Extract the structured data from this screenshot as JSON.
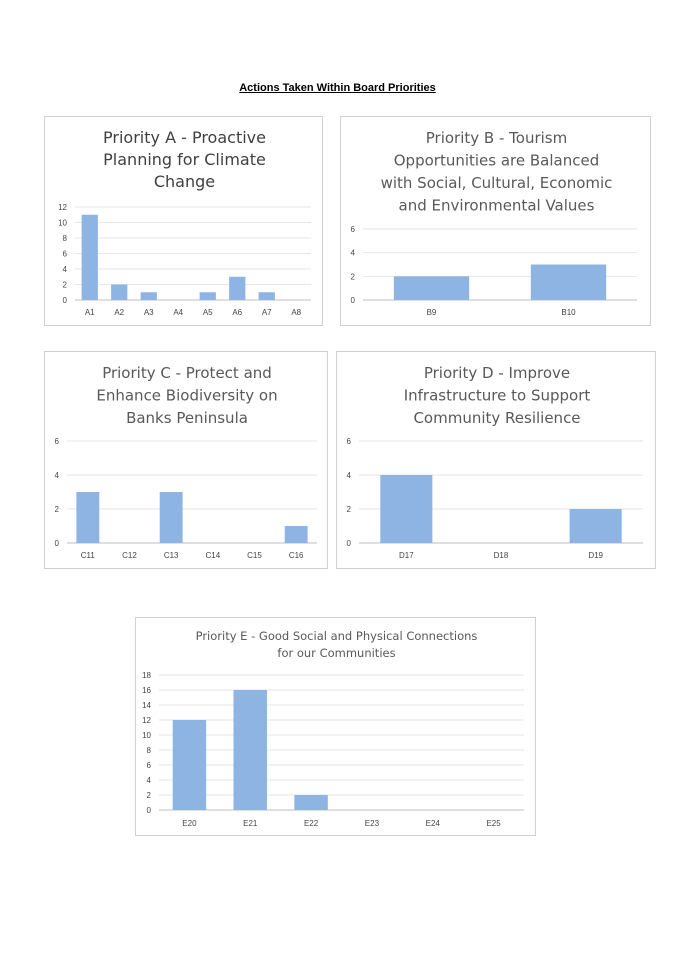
{
  "page": {
    "title": "Actions Taken Within Board Priorities"
  },
  "colors": {
    "bar": "#8db4e2",
    "grid": "#e6e6e6",
    "axis": "#bfbfbf",
    "title_dark": "#404040",
    "title_light": "#595959"
  },
  "chart_data": [
    {
      "id": "A",
      "type": "bar",
      "title_lines": [
        "Priority A - Proactive",
        "Planning for Climate",
        "Change"
      ],
      "categories": [
        "A1",
        "A2",
        "A3",
        "A4",
        "A5",
        "A6",
        "A7",
        "A8"
      ],
      "values": [
        11,
        2,
        1,
        0,
        1,
        3,
        1,
        0
      ],
      "ylim": [
        0,
        12
      ],
      "yticks": [
        "0",
        "2",
        "4",
        "6",
        "8",
        "10",
        "12"
      ],
      "grid": true
    },
    {
      "id": "B",
      "type": "bar",
      "title_lines": [
        "Priority B - Tourism",
        "Opportunities are Balanced",
        "with Social, Cultural, Economic",
        "and Environmental Values"
      ],
      "categories": [
        "B9",
        "B10"
      ],
      "values": [
        2,
        3
      ],
      "ylim": [
        0,
        6
      ],
      "yticks": [
        "0",
        "2",
        "4",
        "6"
      ],
      "grid": true
    },
    {
      "id": "C",
      "type": "bar",
      "title_lines": [
        "Priority C - Protect and",
        "Enhance Biodiversity on",
        "Banks Peninsula"
      ],
      "categories": [
        "C11",
        "C12",
        "C13",
        "C14",
        "C15",
        "C16"
      ],
      "values": [
        3,
        0,
        3,
        0,
        0,
        1
      ],
      "ylim": [
        0,
        6
      ],
      "yticks": [
        "0",
        "2",
        "4",
        "6"
      ],
      "grid": true
    },
    {
      "id": "D",
      "type": "bar",
      "title_lines": [
        "Priority D - Improve",
        "Infrastructure to Support",
        "Community Resilience"
      ],
      "categories": [
        "D17",
        "D18",
        "D19"
      ],
      "values": [
        4,
        0,
        2
      ],
      "ylim": [
        0,
        6
      ],
      "yticks": [
        "0",
        "2",
        "4",
        "6"
      ],
      "grid": true
    },
    {
      "id": "E",
      "type": "bar",
      "title_lines": [
        "Priority E - Good Social and Physical Connections",
        "for our Communities"
      ],
      "categories": [
        "E20",
        "E21",
        "E22",
        "E23",
        "E24",
        "E25"
      ],
      "values": [
        12,
        16,
        2,
        0,
        0,
        0
      ],
      "ylim": [
        0,
        18
      ],
      "yticks": [
        "0",
        "2",
        "4",
        "6",
        "8",
        "10",
        "12",
        "14",
        "16",
        "18"
      ],
      "grid": true
    }
  ]
}
